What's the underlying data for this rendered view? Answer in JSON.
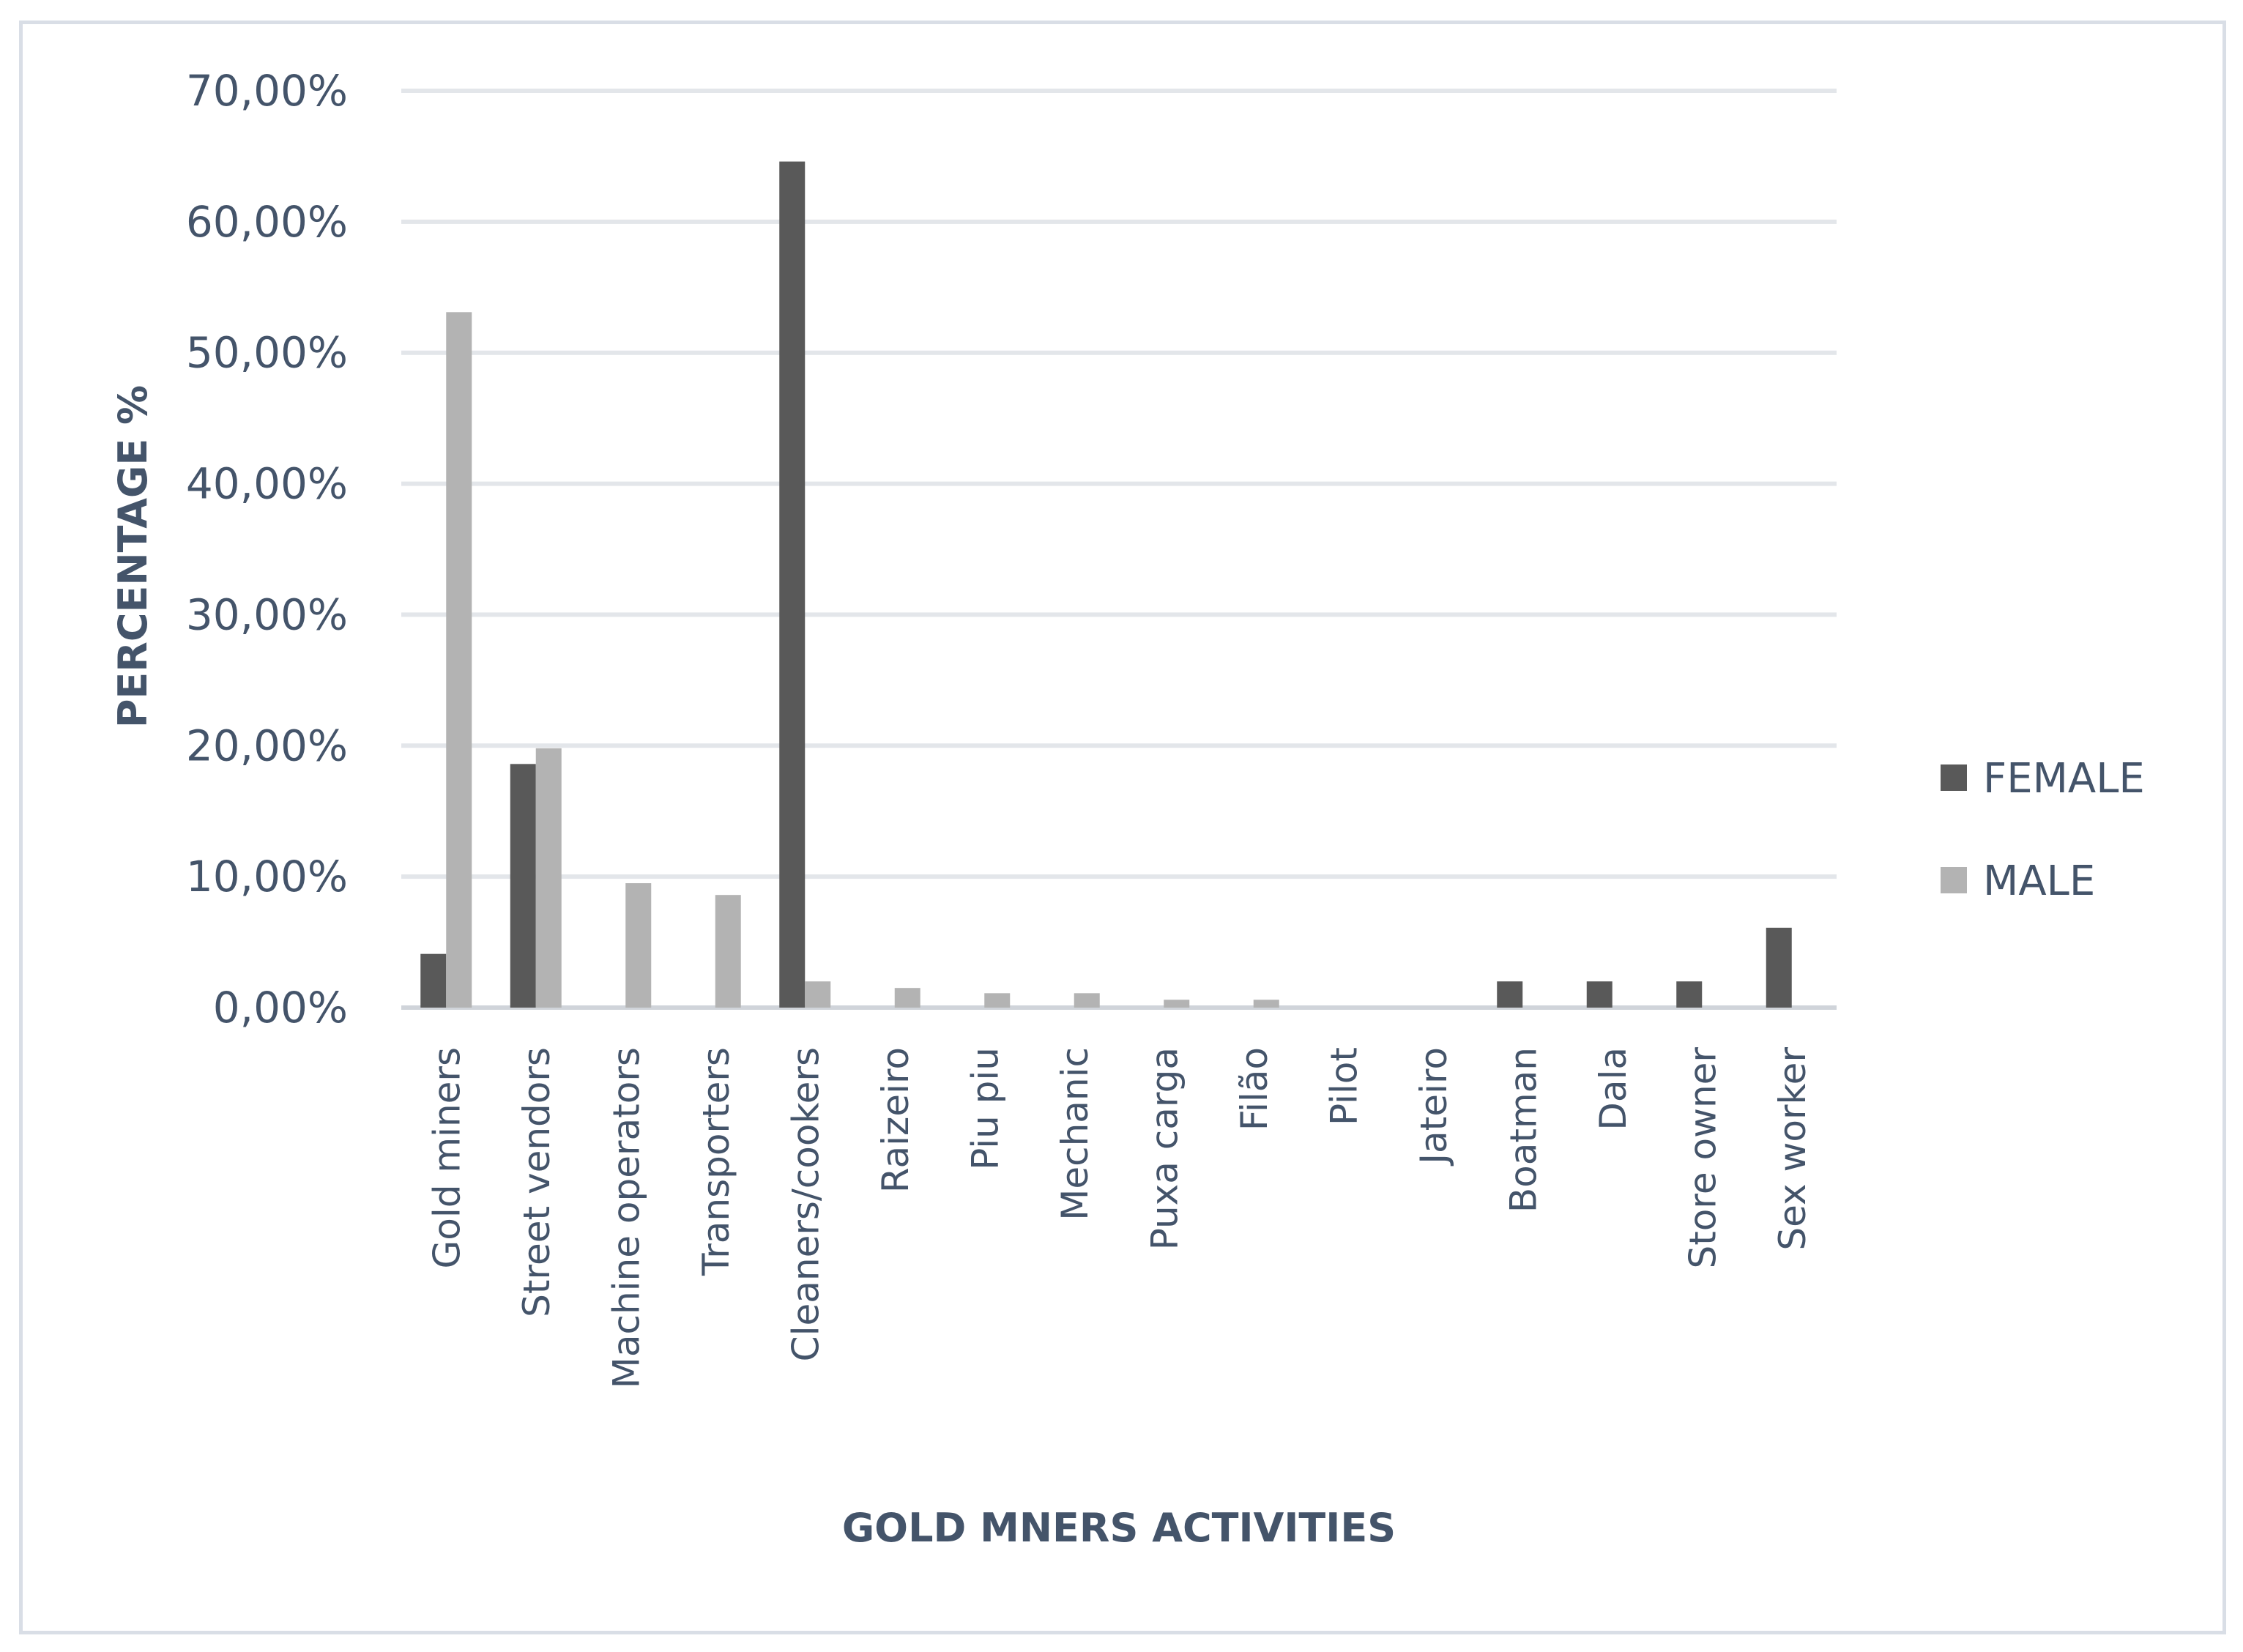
{
  "chart_data": {
    "type": "bar",
    "title": "",
    "xlabel": "GOLD MNERS ACTIVITIES",
    "ylabel": "PERCENTAGE %",
    "ylim": [
      0,
      70
    ],
    "y_ticks": [
      "0,00%",
      "10,00%",
      "20,00%",
      "30,00%",
      "40,00%",
      "50,00%",
      "60,00%",
      "70,00%"
    ],
    "grid": true,
    "legend_position": "right",
    "categories": [
      "Gold miners",
      "Street vendors",
      "Machine operators",
      "Transporters",
      "Cleaners/cookers",
      "Raizeiro",
      "Piu piu",
      "Mechanic",
      "Puxa carga",
      "Filão",
      "Pilot",
      "Jateiro",
      "Boatman",
      "Dala",
      "Store owner",
      "Sex worker"
    ],
    "series": [
      {
        "name": "FEMALE",
        "color": "#595959",
        "values": [
          4.1,
          18.6,
          0,
          0,
          64.6,
          0,
          0,
          0,
          0,
          0,
          0,
          0,
          2.0,
          2.0,
          2.0,
          6.1
        ]
      },
      {
        "name": "MALE",
        "color": "#b3b3b3",
        "values": [
          53.1,
          19.8,
          9.5,
          8.6,
          2.0,
          1.5,
          1.1,
          1.1,
          0.6,
          0.6,
          0,
          0,
          0,
          0,
          0,
          0
        ]
      }
    ]
  }
}
